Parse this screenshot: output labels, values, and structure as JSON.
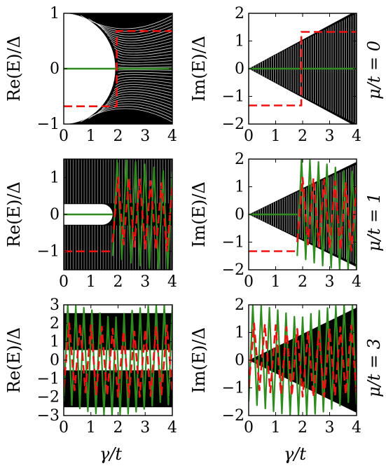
{
  "chart_data": [
    {
      "type": "line",
      "row": 0,
      "col": 0,
      "ylabel": "Re(E)/Δ",
      "xlim": [
        0,
        4
      ],
      "ylim": [
        -1,
        1
      ],
      "xticks": [
        "0",
        "1",
        "2",
        "3",
        "4"
      ],
      "yticks": [
        {
          "v": 1,
          "t": "1"
        },
        {
          "v": 0,
          "t": "0"
        },
        {
          "v": -1,
          "t": "−1"
        }
      ],
      "band_style": "arc",
      "band": {
        "r": 1,
        "gc": 1.9
      },
      "series": [
        {
          "color": "#2e8b1e",
          "style": "solid",
          "segments": [
            [
              [
                0,
                0
              ],
              [
                4,
                0
              ]
            ]
          ]
        },
        {
          "color": "#ee1111",
          "style": "dashed",
          "segments": [
            [
              [
                0,
                -0.68
              ],
              [
                1.95,
                -0.68
              ],
              [
                1.95,
                0.68
              ],
              [
                4,
                0.68
              ]
            ]
          ]
        }
      ]
    },
    {
      "type": "line",
      "row": 0,
      "col": 1,
      "ylabel": "Im(E)/Δ",
      "xlim": [
        0,
        4
      ],
      "ylim": [
        -2,
        2
      ],
      "xticks": [
        "0",
        "1",
        "2",
        "3",
        "4"
      ],
      "yticks": [
        {
          "v": 2,
          "t": "2"
        },
        {
          "v": 1,
          "t": "1"
        },
        {
          "v": 0,
          "t": "0"
        },
        {
          "v": -1,
          "t": "−1"
        },
        {
          "v": -2,
          "t": "−2"
        }
      ],
      "band_style": "wedge",
      "band": {
        "slope": 0.5
      },
      "series": [
        {
          "color": "#2e8b1e",
          "style": "solid",
          "segments": [
            [
              [
                0,
                0
              ],
              [
                4,
                0
              ]
            ]
          ]
        },
        {
          "color": "#ee1111",
          "style": "dashed",
          "segments": [
            [
              [
                0,
                -1.33
              ],
              [
                1.95,
                -1.33
              ],
              [
                1.95,
                1.33
              ],
              [
                4,
                1.33
              ]
            ]
          ]
        }
      ]
    },
    {
      "type": "line",
      "row": 1,
      "col": 0,
      "ylabel": "Re(E)/Δ",
      "xlim": [
        0,
        4
      ],
      "ylim": [
        -1.5,
        1.5
      ],
      "xticks": [
        "0",
        "1",
        "2",
        "3",
        "4"
      ],
      "yticks": [
        {
          "v": 1,
          "t": "1"
        },
        {
          "v": 0,
          "t": "0"
        },
        {
          "v": -1,
          "t": "−1"
        }
      ],
      "band_style": "gap",
      "band": {
        "gap": 0.28,
        "xend": 1.8
      },
      "series": [
        {
          "color": "#2e8b1e",
          "style": "solid",
          "segments": [
            [
              [
                0,
                0
              ],
              [
                1.8,
                0
              ]
            ]
          ]
        },
        {
          "color": "#2e8b1e",
          "style": "solid",
          "osc": {
            "x0": 1.8,
            "x1": 4,
            "amp": 1.5,
            "count": 13
          }
        },
        {
          "color": "#ee1111",
          "style": "dashed",
          "segments": [
            [
              [
                0,
                -1.0
              ],
              [
                1.8,
                -1.0
              ]
            ]
          ]
        },
        {
          "color": "#ee1111",
          "style": "dashed",
          "osc": {
            "x0": 1.8,
            "x1": 4,
            "amp": 1.0,
            "count": 11
          }
        }
      ]
    },
    {
      "type": "line",
      "row": 1,
      "col": 1,
      "ylabel": "Im(E)/Δ",
      "xlim": [
        0,
        4
      ],
      "ylim": [
        -2,
        2
      ],
      "xticks": [
        "0",
        "1",
        "2",
        "3",
        "4"
      ],
      "yticks": [
        {
          "v": 2,
          "t": "2"
        },
        {
          "v": 1,
          "t": "1"
        },
        {
          "v": 0,
          "t": "0"
        },
        {
          "v": -1,
          "t": "−1"
        },
        {
          "v": -2,
          "t": "−2"
        }
      ],
      "band_style": "wedge",
      "band": {
        "slope": 0.45
      },
      "series": [
        {
          "color": "#2e8b1e",
          "style": "solid",
          "segments": [
            [
              [
                0,
                0
              ],
              [
                1.8,
                0
              ]
            ]
          ]
        },
        {
          "color": "#2e8b1e",
          "style": "solid",
          "osc": {
            "x0": 1.8,
            "x1": 4,
            "amp": 2.0,
            "count": 14
          }
        },
        {
          "color": "#ee1111",
          "style": "dashed",
          "segments": [
            [
              [
                0,
                -1.33
              ],
              [
                1.8,
                -1.33
              ]
            ]
          ]
        },
        {
          "color": "#ee1111",
          "style": "dashed",
          "osc": {
            "x0": 1.8,
            "x1": 4,
            "amp": 1.33,
            "count": 11
          }
        }
      ]
    },
    {
      "type": "line",
      "row": 2,
      "col": 0,
      "ylabel": "Re(E)/Δ",
      "xlim": [
        0,
        4
      ],
      "ylim": [
        -3,
        3
      ],
      "xticks": [
        "0",
        "1",
        "2",
        "3",
        "4"
      ],
      "yticks": [
        {
          "v": 3,
          "t": "3"
        },
        {
          "v": 2,
          "t": "2"
        },
        {
          "v": 1,
          "t": "1"
        },
        {
          "v": 0,
          "t": "0"
        },
        {
          "v": -1,
          "t": "−1"
        },
        {
          "v": -2,
          "t": "−2"
        },
        {
          "v": -3,
          "t": "−3"
        }
      ],
      "band_style": "twoband",
      "band": {
        "lo": 0.55,
        "hi": 2.55
      },
      "series": [
        {
          "color": "#2e8b1e",
          "style": "solid",
          "osc": {
            "x0": 0,
            "x1": 4,
            "amp": 3.0,
            "count": 27
          }
        },
        {
          "color": "#ee1111",
          "style": "dashed",
          "osc": {
            "x0": 0,
            "x1": 4,
            "amp": 2.0,
            "count": 20
          }
        }
      ]
    },
    {
      "type": "line",
      "row": 2,
      "col": 1,
      "ylabel": "Im(E)/Δ",
      "xlim": [
        0,
        4
      ],
      "ylim": [
        -2,
        2
      ],
      "xticks": [
        "0",
        "1",
        "2",
        "3",
        "4"
      ],
      "yticks": [
        {
          "v": 2,
          "t": "2"
        },
        {
          "v": 1,
          "t": "1"
        },
        {
          "v": 0,
          "t": "0"
        },
        {
          "v": -1,
          "t": "−1"
        },
        {
          "v": -2,
          "t": "−2"
        }
      ],
      "band_style": "xwedge",
      "band": {
        "slope": 0.45
      },
      "series": [
        {
          "color": "#2e8b1e",
          "style": "solid",
          "osc": {
            "x0": 0,
            "x1": 4,
            "amp": 2.0,
            "count": 26
          }
        },
        {
          "color": "#ee1111",
          "style": "dashed",
          "osc": {
            "x0": 0,
            "x1": 4,
            "amp": 1.33,
            "count": 20
          }
        }
      ]
    }
  ],
  "xlabel": "γ/t",
  "row_labels": [
    "μ/t = 0",
    "μ/t = 1",
    "μ/t = 3"
  ]
}
